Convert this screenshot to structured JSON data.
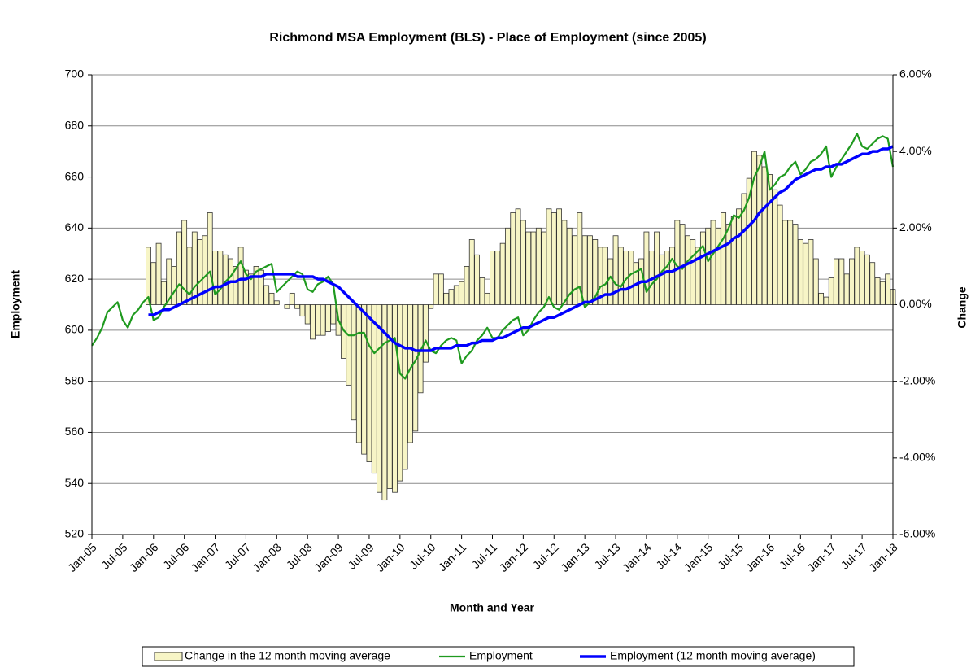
{
  "chart_data": {
    "type": "combo",
    "title": "Richmond MSA Employment (BLS) - Place of Employment (since 2005)",
    "x_label": "Month and Year",
    "y_label": "Employment",
    "y2_label": "Change",
    "categories": [
      "Jan-05",
      null,
      null,
      null,
      null,
      null,
      "Jul-05",
      null,
      null,
      null,
      null,
      null,
      "Jan-06",
      null,
      null,
      null,
      null,
      null,
      "Jul-06",
      null,
      null,
      null,
      null,
      null,
      "Jan-07",
      null,
      null,
      null,
      null,
      null,
      "Jul-07",
      null,
      null,
      null,
      null,
      null,
      "Jan-08",
      null,
      null,
      null,
      null,
      null,
      "Jul-08",
      null,
      null,
      null,
      null,
      null,
      "Jan-09",
      null,
      null,
      null,
      null,
      null,
      "Jul-09",
      null,
      null,
      null,
      null,
      null,
      "Jan-10",
      null,
      null,
      null,
      null,
      null,
      "Jul-10",
      null,
      null,
      null,
      null,
      null,
      "Jan-11",
      null,
      null,
      null,
      null,
      null,
      "Jul-11",
      null,
      null,
      null,
      null,
      null,
      "Jan-12",
      null,
      null,
      null,
      null,
      null,
      "Jul-12",
      null,
      null,
      null,
      null,
      null,
      "Jan-13",
      null,
      null,
      null,
      null,
      null,
      "Jul-13",
      null,
      null,
      null,
      null,
      null,
      "Jan-14",
      null,
      null,
      null,
      null,
      null,
      "Jul-14",
      null,
      null,
      null,
      null,
      null,
      "Jan-15",
      null,
      null,
      null,
      null,
      null,
      "Jul-15",
      null,
      null,
      null,
      null,
      null,
      "Jan-16",
      null,
      null,
      null,
      null,
      null,
      "Jul-16",
      null,
      null,
      null,
      null,
      null,
      "Jan-17",
      null,
      null,
      null,
      null,
      null,
      "Jul-17",
      null,
      null,
      null,
      null,
      null,
      "Jan-18"
    ],
    "series": [
      {
        "name": "Change in the 12 month moving average",
        "type": "bar",
        "axis": "y2",
        "color": "#f7f5c6",
        "values": [
          null,
          null,
          null,
          null,
          null,
          null,
          null,
          null,
          null,
          null,
          null,
          1.5,
          1.1,
          1.6,
          0.6,
          1.2,
          1.0,
          1.9,
          2.2,
          1.5,
          1.9,
          1.7,
          1.8,
          2.4,
          1.4,
          1.4,
          1.3,
          1.2,
          1.0,
          1.5,
          0.9,
          0.8,
          1.0,
          0.9,
          0.5,
          0.3,
          0.1,
          0.0,
          -0.1,
          0.3,
          -0.1,
          -0.3,
          -0.5,
          -0.9,
          -0.8,
          -0.8,
          -0.7,
          -0.5,
          -0.8,
          -1.4,
          -2.1,
          -3.0,
          -3.6,
          -3.9,
          -4.1,
          -4.4,
          -4.9,
          -5.1,
          -4.8,
          -4.9,
          -4.6,
          -4.3,
          -3.6,
          -3.3,
          -2.3,
          -1.5,
          -0.1,
          0.8,
          0.8,
          0.3,
          0.4,
          0.5,
          0.6,
          1.0,
          1.7,
          1.3,
          0.7,
          0.3,
          1.4,
          1.4,
          1.6,
          2.0,
          2.4,
          2.5,
          2.2,
          1.9,
          1.9,
          2.0,
          1.9,
          2.5,
          2.4,
          2.5,
          2.2,
          2.0,
          1.8,
          2.4,
          1.8,
          1.8,
          1.7,
          1.5,
          1.5,
          1.2,
          1.8,
          1.5,
          1.4,
          1.4,
          1.1,
          1.2,
          1.9,
          1.4,
          1.9,
          1.3,
          1.4,
          1.5,
          2.2,
          2.1,
          1.8,
          1.7,
          1.5,
          1.9,
          2.0,
          2.2,
          2.0,
          2.4,
          2.1,
          2.3,
          2.5,
          2.9,
          3.3,
          4.0,
          3.9,
          3.6,
          3.4,
          3.0,
          2.6,
          2.2,
          2.2,
          2.1,
          1.7,
          1.6,
          1.7,
          1.2,
          0.3,
          0.2,
          0.7,
          1.2,
          1.2,
          0.8,
          1.2,
          1.5,
          1.4,
          1.3,
          1.1,
          0.7,
          0.6,
          0.8,
          0.4
        ]
      },
      {
        "name": "Employment",
        "type": "line",
        "color": "#1f9a1f",
        "values": [
          594,
          597,
          601,
          607,
          609,
          611,
          604,
          601,
          606,
          608,
          611,
          613,
          604,
          605,
          609,
          612,
          615,
          618,
          616,
          614,
          617,
          619,
          621,
          623,
          614,
          616,
          619,
          621,
          624,
          627,
          622,
          620,
          623,
          624,
          625,
          626,
          615,
          617,
          619,
          621,
          623,
          622,
          616,
          615,
          618,
          619,
          621,
          618,
          604,
          600,
          598,
          598,
          599,
          599,
          594,
          591,
          593,
          595,
          596,
          597,
          583,
          581,
          585,
          588,
          592,
          596,
          592,
          591,
          594,
          596,
          597,
          596,
          587,
          590,
          592,
          596,
          598,
          601,
          597,
          597,
          600,
          602,
          604,
          605,
          598,
          600,
          604,
          607,
          609,
          613,
          609,
          608,
          611,
          614,
          616,
          617,
          609,
          611,
          613,
          617,
          618,
          621,
          618,
          617,
          620,
          622,
          623,
          624,
          615,
          618,
          620,
          623,
          625,
          628,
          625,
          624,
          627,
          629,
          631,
          633,
          627,
          630,
          633,
          636,
          640,
          645,
          644,
          647,
          652,
          660,
          664,
          670,
          655,
          657,
          660,
          661,
          664,
          666,
          661,
          663,
          666,
          667,
          669,
          672,
          660,
          664,
          667,
          670,
          673,
          677,
          672,
          671,
          673,
          675,
          676,
          675,
          664
        ]
      },
      {
        "name": "Employment (12 month moving average)",
        "type": "line",
        "color": "#0000ff",
        "values": [
          null,
          null,
          null,
          null,
          null,
          null,
          null,
          null,
          null,
          null,
          null,
          606,
          606,
          607,
          608,
          608,
          609,
          610,
          611,
          612,
          613,
          614,
          615,
          616,
          617,
          617,
          618,
          619,
          619,
          620,
          620,
          621,
          621,
          621,
          622,
          622,
          622,
          622,
          622,
          622,
          621,
          621,
          621,
          621,
          620,
          620,
          619,
          618,
          617,
          615,
          613,
          611,
          609,
          607,
          605,
          603,
          601,
          599,
          597,
          595,
          594,
          593,
          593,
          592,
          592,
          592,
          592,
          593,
          593,
          593,
          593,
          594,
          594,
          594,
          595,
          595,
          596,
          596,
          596,
          597,
          597,
          598,
          599,
          600,
          601,
          601,
          602,
          603,
          604,
          605,
          605,
          606,
          607,
          608,
          609,
          610,
          611,
          611,
          612,
          613,
          614,
          614,
          615,
          616,
          616,
          617,
          618,
          619,
          619,
          620,
          621,
          622,
          623,
          623,
          624,
          625,
          626,
          627,
          628,
          629,
          630,
          631,
          632,
          633,
          634,
          636,
          637,
          639,
          641,
          643,
          646,
          648,
          650,
          652,
          654,
          655,
          657,
          659,
          660,
          661,
          662,
          663,
          663,
          664,
          664,
          665,
          665,
          666,
          667,
          668,
          669,
          669,
          670,
          670,
          671,
          671,
          672
        ]
      }
    ],
    "ylim": [
      520,
      700
    ],
    "yticks": [
      520,
      540,
      560,
      580,
      600,
      620,
      640,
      660,
      680,
      700
    ],
    "y2lim": [
      -6,
      6
    ],
    "y2ticks": [
      {
        "value": -6,
        "label": "-6.00%"
      },
      {
        "value": -4,
        "label": "-4.00%"
      },
      {
        "value": -2,
        "label": "-2.00%"
      },
      {
        "value": 0,
        "label": "0.00%"
      },
      {
        "value": 2,
        "label": "2.00%"
      },
      {
        "value": 4,
        "label": "4.00%"
      },
      {
        "value": 6,
        "label": "6.00%"
      }
    ],
    "grid": true,
    "legend": "bottom"
  }
}
